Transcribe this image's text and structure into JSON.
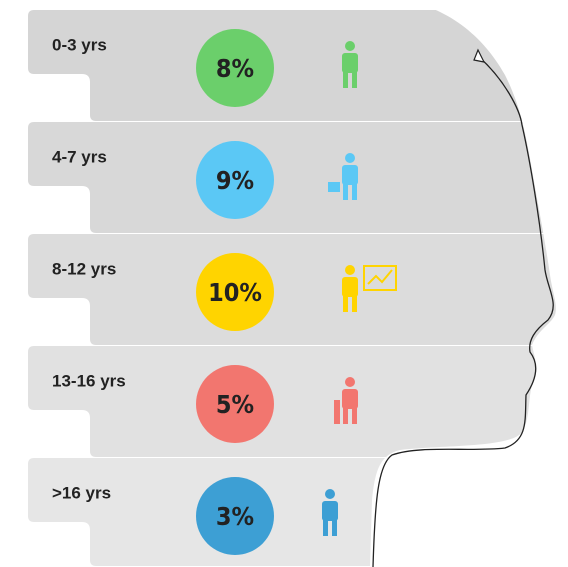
{
  "rows": [
    {
      "label": "0-3 yrs",
      "value": "8%",
      "color": "#6bcf6b"
    },
    {
      "label": "4-7 yrs",
      "value": "9%",
      "color": "#5bc8f5"
    },
    {
      "label": "8-12 yrs",
      "value": "10%",
      "color": "#ffd400"
    },
    {
      "label": "13-16 yrs",
      "value": "5%",
      "color": "#f2766f"
    },
    {
      "label": ">16 yrs",
      "value": "3%",
      "color": "#3d9fd4"
    }
  ]
}
